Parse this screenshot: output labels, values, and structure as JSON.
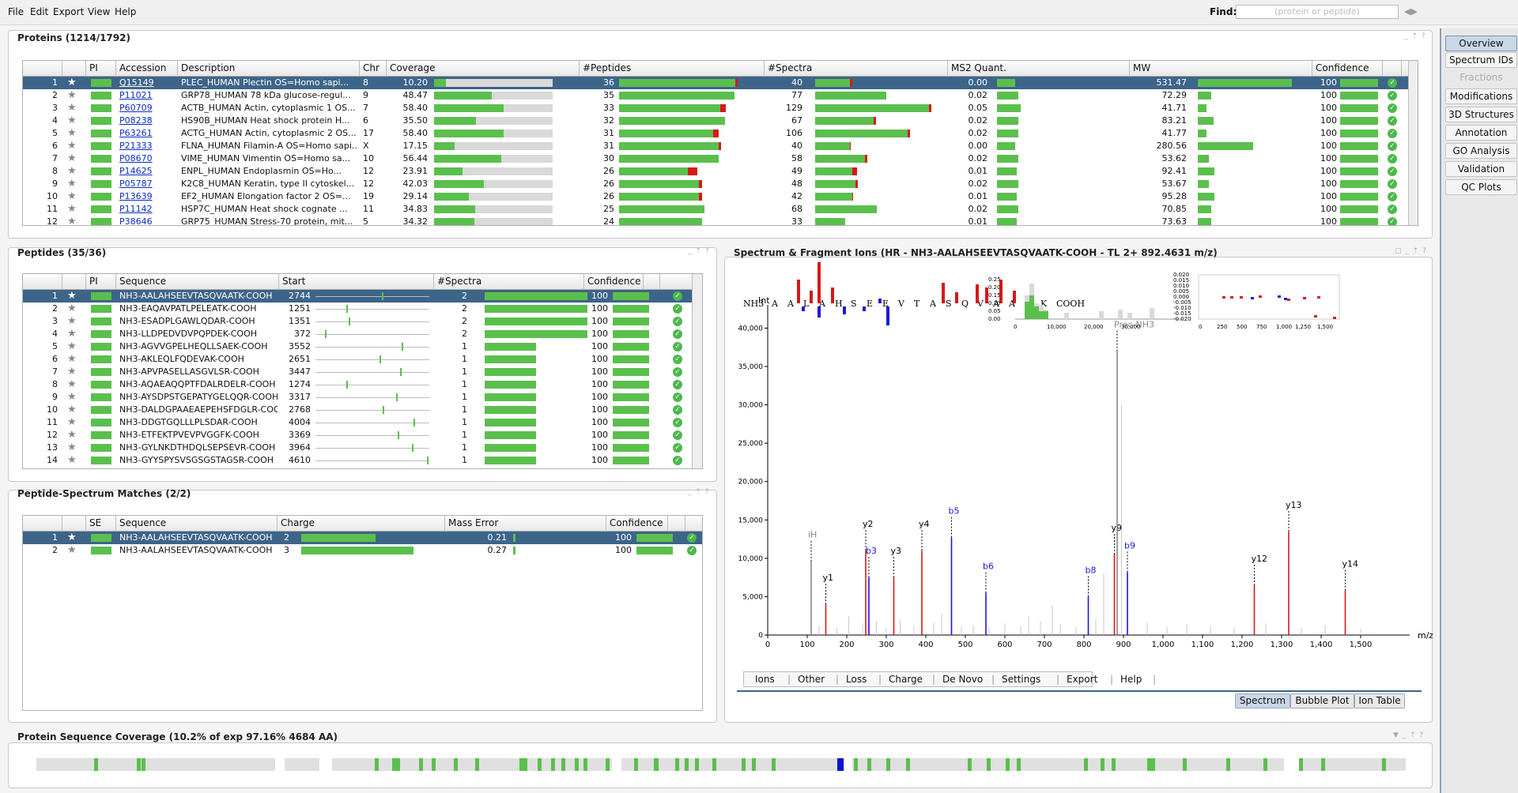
{
  "menu": [
    "File",
    "Edit",
    "Export",
    "View",
    "Help"
  ],
  "find": {
    "label": "Find:",
    "placeholder": "(protein or peptide)"
  },
  "sidebar": [
    "Overview",
    "Spectrum IDs",
    "Fractions",
    "Modifications",
    "3D Structures",
    "Annotation",
    "GO Analysis",
    "Validation",
    "QC Plots"
  ],
  "proteins": {
    "title": "Proteins (1214/1792)",
    "columns": [
      "",
      "",
      "PI",
      "Accession",
      "Description",
      "Chr",
      "Coverage",
      "#Peptides",
      "#Spectra",
      "MS2 Quant.",
      "MW",
      "Confidence",
      ""
    ],
    "rows": [
      {
        "n": "1",
        "acc": "Q15149",
        "desc": "PLEC_HUMAN Plectin OS=Homo sapi...",
        "chr": "8",
        "cov": "10.20",
        "covf": 0.102,
        "pep": "36",
        "pepf": 1.0,
        "pepr": 0.02,
        "spec": "40",
        "specf": 0.31,
        "specr": 0.02,
        "ms2": "0.00",
        "ms2f": 0.3,
        "mw": "531.47",
        "mwf": 0.85,
        "conf": "100"
      },
      {
        "n": "2",
        "acc": "P11021",
        "desc": "GRP78_HUMAN 78 kDa glucose-regul...",
        "chr": "9",
        "cov": "48.47",
        "covf": 0.485,
        "pep": "35",
        "pepf": 0.97,
        "pepr": 0,
        "spec": "77",
        "specf": 0.6,
        "specr": 0,
        "ms2": "0.02",
        "ms2f": 0.35,
        "mw": "72.29",
        "mwf": 0.12,
        "conf": "100"
      },
      {
        "n": "3",
        "acc": "P60709",
        "desc": "ACTB_HUMAN Actin, cytoplasmic 1 OS...",
        "chr": "7",
        "cov": "58.40",
        "covf": 0.584,
        "pep": "33",
        "pepf": 0.9,
        "pepr": 0.05,
        "spec": "129",
        "specf": 0.98,
        "specr": 0.02,
        "ms2": "0.05",
        "ms2f": 0.4,
        "mw": "41.71",
        "mwf": 0.08,
        "conf": "100"
      },
      {
        "n": "4",
        "acc": "P08238",
        "desc": "HS90B_HUMAN Heat shock protein H...",
        "chr": "6",
        "cov": "35.50",
        "covf": 0.355,
        "pep": "32",
        "pepf": 0.89,
        "pepr": 0,
        "spec": "67",
        "specf": 0.51,
        "specr": 0.02,
        "ms2": "0.02",
        "ms2f": 0.35,
        "mw": "83.21",
        "mwf": 0.14,
        "conf": "100"
      },
      {
        "n": "5",
        "acc": "P63261",
        "desc": "ACTG_HUMAN Actin, cytoplasmic 2 OS...",
        "chr": "17",
        "cov": "58.40",
        "covf": 0.584,
        "pep": "31",
        "pepf": 0.84,
        "pepr": 0.05,
        "spec": "106",
        "specf": 0.8,
        "specr": 0.02,
        "ms2": "0.02",
        "ms2f": 0.35,
        "mw": "41.77",
        "mwf": 0.08,
        "conf": "100"
      },
      {
        "n": "6",
        "acc": "P21333",
        "desc": "FLNA_HUMAN Filamin-A OS=Homo sapi...",
        "chr": "X",
        "cov": "17.15",
        "covf": 0.172,
        "pep": "31",
        "pepf": 0.86,
        "pepr": 0.02,
        "spec": "40",
        "specf": 0.3,
        "specr": 0.01,
        "ms2": "0.00",
        "ms2f": 0.3,
        "mw": "280.56",
        "mwf": 0.5,
        "conf": "100"
      },
      {
        "n": "7",
        "acc": "P08670",
        "desc": "VIME_HUMAN Vimentin OS=Homo sa...",
        "chr": "10",
        "cov": "56.44",
        "covf": 0.564,
        "pep": "30",
        "pepf": 0.84,
        "pepr": 0,
        "spec": "58",
        "specf": 0.44,
        "specr": 0.02,
        "ms2": "0.02",
        "ms2f": 0.35,
        "mw": "53.62",
        "mwf": 0.1,
        "conf": "100"
      },
      {
        "n": "8",
        "acc": "P14625",
        "desc": "ENPL_HUMAN Endoplasmin OS=Ho...",
        "chr": "12",
        "cov": "23.91",
        "covf": 0.239,
        "pep": "26",
        "pepf": 0.66,
        "pepr": 0.08,
        "spec": "49",
        "specf": 0.35,
        "specr": 0.04,
        "ms2": "0.01",
        "ms2f": 0.33,
        "mw": "92.41",
        "mwf": 0.15,
        "conf": "100"
      },
      {
        "n": "9",
        "acc": "P05787",
        "desc": "K2C8_HUMAN Keratin, type II cytoskel...",
        "chr": "12",
        "cov": "42.03",
        "covf": 0.42,
        "pep": "26",
        "pepf": 0.7,
        "pepr": 0.03,
        "spec": "48",
        "specf": 0.36,
        "specr": 0.02,
        "ms2": "0.02",
        "ms2f": 0.35,
        "mw": "53.67",
        "mwf": 0.1,
        "conf": "100"
      },
      {
        "n": "10",
        "acc": "P13639",
        "desc": "EF2_HUMAN Elongation factor 2 OS=...",
        "chr": "19",
        "cov": "29.14",
        "covf": 0.291,
        "pep": "26",
        "pepf": 0.7,
        "pepr": 0.03,
        "spec": "42",
        "specf": 0.32,
        "specr": 0.01,
        "ms2": "0.01",
        "ms2f": 0.33,
        "mw": "95.28",
        "mwf": 0.15,
        "conf": "100"
      },
      {
        "n": "11",
        "acc": "P11142",
        "desc": "HSP7C_HUMAN Heat shock cognate ...",
        "chr": "11",
        "cov": "34.83",
        "covf": 0.348,
        "pep": "25",
        "pepf": 0.72,
        "pepr": 0,
        "spec": "68",
        "specf": 0.52,
        "specr": 0,
        "ms2": "0.02",
        "ms2f": 0.35,
        "mw": "70.85",
        "mwf": 0.12,
        "conf": "100"
      },
      {
        "n": "12",
        "acc": "P38646",
        "desc": "GRP75_HUMAN Stress-70 protein, mit...",
        "chr": "5",
        "cov": "34.32",
        "covf": 0.343,
        "pep": "24",
        "pepf": 0.7,
        "pepr": 0,
        "spec": "33",
        "specf": 0.25,
        "specr": 0,
        "ms2": "0.01",
        "ms2f": 0.33,
        "mw": "73.63",
        "mwf": 0.12,
        "conf": "100"
      }
    ]
  },
  "peptides": {
    "title": "Peptides (35/36)",
    "columns": [
      "",
      "",
      "PI",
      "Sequence",
      "Start",
      "#Spectra",
      "Confidence",
      ""
    ],
    "rows": [
      {
        "n": "1",
        "seq": "NH3-AALAHSEEVTASQVAATK-COOH",
        "start": "2744",
        "pos": 0.58,
        "spec": "2",
        "specf": 1.0,
        "conf": "100"
      },
      {
        "n": "2",
        "seq": "NH3-EAQAVPATLPELEATK-COOH",
        "start": "1251",
        "pos": 0.27,
        "spec": "2",
        "specf": 1.0,
        "conf": "100"
      },
      {
        "n": "3",
        "seq": "NH3-ESADPLGAWLQDAR-COOH",
        "start": "1351",
        "pos": 0.29,
        "spec": "2",
        "specf": 1.0,
        "conf": "100"
      },
      {
        "n": "4",
        "seq": "NH3-LLDPEDVDVPQPDEK-COOH",
        "start": "372",
        "pos": 0.08,
        "spec": "2",
        "specf": 1.0,
        "conf": "100"
      },
      {
        "n": "5",
        "seq": "NH3-AGVVGPELHEQLLSAEK-COOH",
        "start": "3552",
        "pos": 0.76,
        "spec": "1",
        "specf": 0.5,
        "conf": "100"
      },
      {
        "n": "6",
        "seq": "NH3-AKLEQLFQDEVAK-COOH",
        "start": "2651",
        "pos": 0.56,
        "spec": "1",
        "specf": 0.5,
        "conf": "100"
      },
      {
        "n": "7",
        "seq": "NH3-APVPASELLASGVLSR-COOH",
        "start": "3447",
        "pos": 0.74,
        "spec": "1",
        "specf": 0.5,
        "conf": "100"
      },
      {
        "n": "8",
        "seq": "NH3-AQAEAQQPTFDALRDELR-COOH",
        "start": "1274",
        "pos": 0.27,
        "spec": "1",
        "specf": 0.5,
        "conf": "100"
      },
      {
        "n": "9",
        "seq": "NH3-AYSDPSTGEPATYGELQQR-COOH",
        "start": "3317",
        "pos": 0.71,
        "spec": "1",
        "specf": 0.5,
        "conf": "100"
      },
      {
        "n": "10",
        "seq": "NH3-DALDGPAAEAEPEHSFDGLR-COOH",
        "start": "2768",
        "pos": 0.59,
        "spec": "1",
        "specf": 0.5,
        "conf": "100"
      },
      {
        "n": "11",
        "seq": "NH3-DDGTGQLLLPLSDAR-COOH",
        "start": "4004",
        "pos": 0.86,
        "spec": "1",
        "specf": 0.5,
        "conf": "100"
      },
      {
        "n": "12",
        "seq": "NH3-ETFEKTPVEVPVGGFK-COOH",
        "start": "3369",
        "pos": 0.72,
        "spec": "1",
        "specf": 0.5,
        "conf": "100"
      },
      {
        "n": "13",
        "seq": "NH3-GYLNKDTHDQLSEPSEVR-COOH",
        "start": "3964",
        "pos": 0.85,
        "spec": "1",
        "specf": 0.5,
        "conf": "100"
      },
      {
        "n": "14",
        "seq": "NH3-GYYSPYSVSGSGSTAGSR-COOH",
        "start": "4610",
        "pos": 0.98,
        "spec": "1",
        "specf": 0.5,
        "conf": "100"
      }
    ]
  },
  "psm": {
    "title": "Peptide-Spectrum Matches (2/2)",
    "columns": [
      "",
      "",
      "SE",
      "Sequence",
      "Charge",
      "Mass Error",
      "Confidence",
      ""
    ],
    "rows": [
      {
        "n": "1",
        "seq": "NH3-AALAHSEEVTASQVAATK-COOH",
        "charge": "2",
        "chargef": 0.66,
        "err": "0.21",
        "conf": "100"
      },
      {
        "n": "2",
        "seq": "NH3-AALAHSEEVTASQVAATK-COOH",
        "charge": "3",
        "chargef": 1.0,
        "err": "0.27",
        "conf": "100"
      }
    ]
  },
  "spectrum": {
    "title": "Spectrum & Fragment Ions (HR - NH3-AALAHSEEVTASQVAATK-COOH - TL   2+   892.4631 m/z)",
    "sequence_letters": [
      "NH3",
      "A",
      "A",
      "L",
      "A",
      "H",
      "S",
      "E",
      "E",
      "V",
      "T",
      "A",
      "S",
      "Q",
      "V",
      "A",
      "A",
      "T",
      "K",
      "COOH"
    ],
    "toolbar": [
      "Ions",
      "Other",
      "Loss",
      "Charge",
      "De Novo",
      "Settings",
      "Export",
      "Help"
    ],
    "tabs": [
      "Spectrum",
      "Bubble Plot",
      "Ion Table"
    ],
    "ylabel": "Int",
    "xlabel": "m/z"
  },
  "chart_data": [
    {
      "type": "bar",
      "title": "",
      "xlabel": "m/z",
      "ylabel": "Int",
      "xlim": [
        0,
        1600
      ],
      "ylim": [
        0,
        42000
      ],
      "xticks": [
        0,
        100,
        200,
        300,
        400,
        500,
        600,
        700,
        800,
        900,
        1000,
        1100,
        1200,
        1300,
        1400,
        1500
      ],
      "yticks": [
        0,
        5000,
        10000,
        15000,
        20000,
        25000,
        30000,
        35000,
        40000
      ],
      "annotated_peaks": [
        {
          "label": "iH",
          "mz": 110,
          "int": 9600,
          "color": "#888888"
        },
        {
          "label": "y1",
          "mz": 147,
          "int": 4000,
          "color": "#d81818"
        },
        {
          "label": "y2",
          "mz": 248,
          "int": 11000,
          "color": "#d81818"
        },
        {
          "label": "b3",
          "mz": 256,
          "int": 7500,
          "color": "#1a1ad8"
        },
        {
          "label": "y3",
          "mz": 319,
          "int": 7500,
          "color": "#d81818"
        },
        {
          "label": "y4",
          "mz": 390,
          "int": 11000,
          "color": "#d81818"
        },
        {
          "label": "b5",
          "mz": 465,
          "int": 12700,
          "color": "#1a1ad8"
        },
        {
          "label": "b6",
          "mz": 552,
          "int": 5500,
          "color": "#1a1ad8"
        },
        {
          "label": "b8",
          "mz": 811,
          "int": 5000,
          "color": "#1a1ad8"
        },
        {
          "label": "y9",
          "mz": 877,
          "int": 10500,
          "color": "#d81818"
        },
        {
          "label": "Prec-NH3",
          "mz": 884,
          "int": 37000,
          "color": "#888888"
        },
        {
          "label": "b9",
          "mz": 910,
          "int": 8200,
          "color": "#1a1ad8"
        },
        {
          "label": "y12",
          "mz": 1231,
          "int": 6500,
          "color": "#d81818"
        },
        {
          "label": "y13",
          "mz": 1318,
          "int": 13500,
          "color": "#d81818"
        },
        {
          "label": "y14",
          "mz": 1461,
          "int": 5800,
          "color": "#d81818"
        }
      ]
    }
  ],
  "coverage": {
    "title": "Protein Sequence Coverage (10.2% of exp 97.16%   4684 AA)"
  }
}
